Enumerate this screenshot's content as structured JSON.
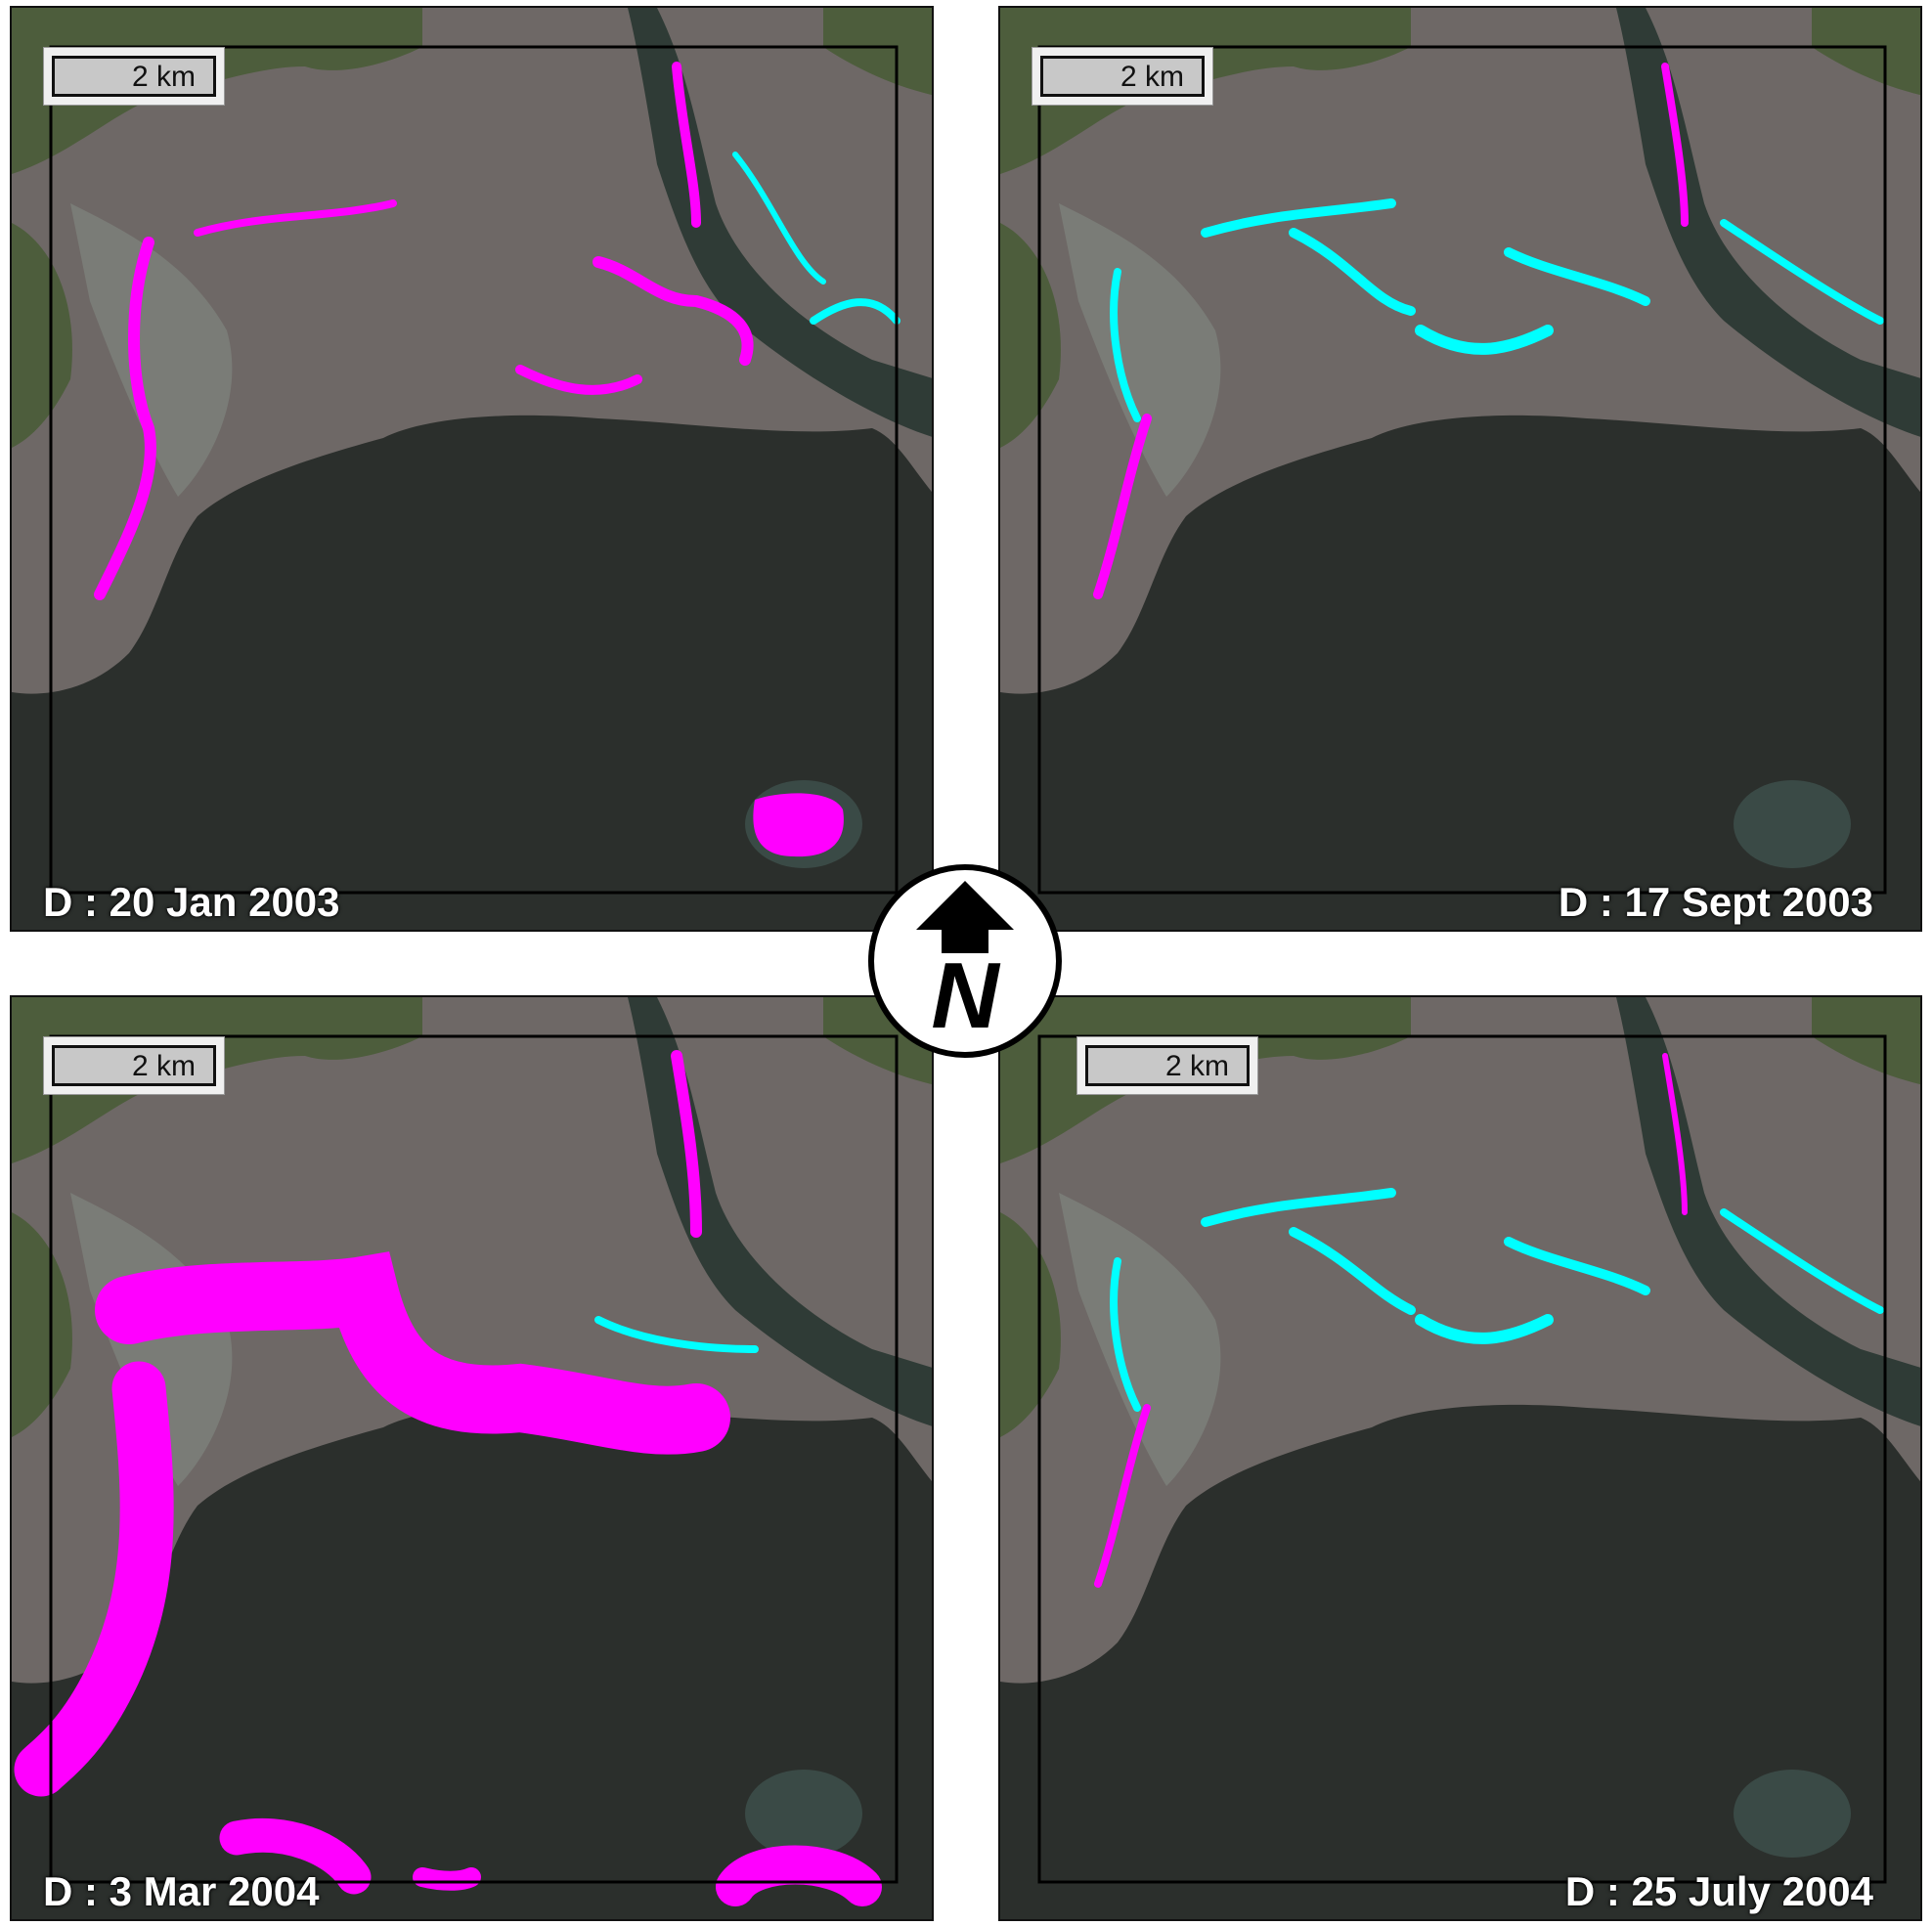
{
  "panels": [
    {
      "scale_label": "2 km",
      "date": "D : 20 Jan 2003"
    },
    {
      "scale_label": "2 km",
      "date": "D : 17 Sept 2003"
    },
    {
      "scale_label": "2 km",
      "date": "D : 3 Mar 2004"
    },
    {
      "scale_label": "2 km",
      "date": "D : 25 July 2004"
    }
  ],
  "north_arrow": {
    "label": "N"
  }
}
